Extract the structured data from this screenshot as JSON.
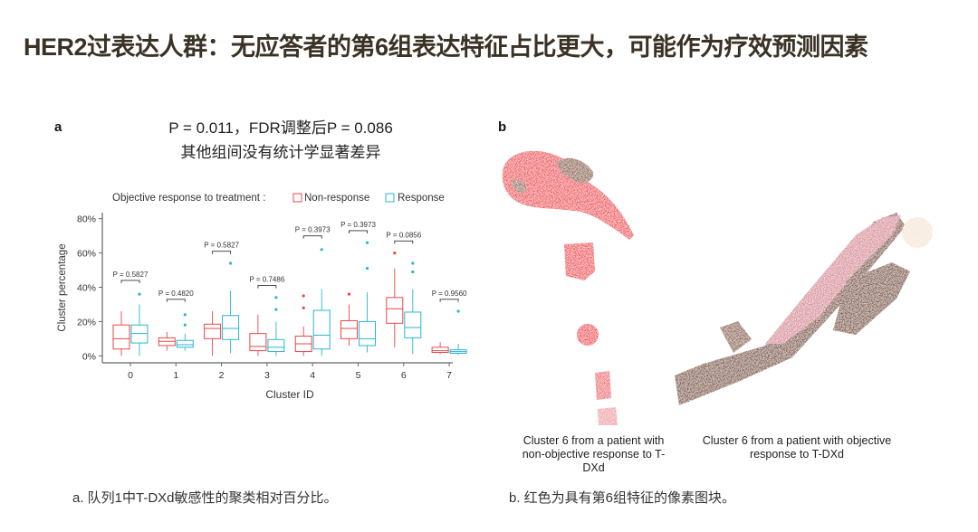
{
  "title": "HER2过表达人群：无应答者的第6组表达特征占比更大，可能作为疗效预测因素",
  "panel_a": {
    "letter": "a",
    "stat_line1": "P = 0.011，FDR调整后P = 0.086",
    "stat_line2": "其他组间没有统计学显著差异",
    "caption": "a. 队列1中T-DXd敏感性的聚类相对百分比。"
  },
  "panel_b": {
    "letter": "b",
    "caption_left": "Cluster 6 from a patient with non-objective response to T-DXd",
    "caption_right": "Cluster 6 from a patient with objective response to T-DXd",
    "caption": "b. 红色为具有第6组特征的像素图块。"
  },
  "chart_data": {
    "type": "box",
    "legend_title": "Objective response to treatment :",
    "legend_position": "top",
    "xlabel": "Cluster ID",
    "ylabel": "Cluster percentage",
    "ylim": [
      0,
      80
    ],
    "yticks": [
      "0%",
      "20%",
      "40%",
      "60%",
      "80%"
    ],
    "ytick_values": [
      0,
      20,
      40,
      60,
      80
    ],
    "categories": [
      "0",
      "1",
      "2",
      "3",
      "4",
      "5",
      "6",
      "7"
    ],
    "series": [
      {
        "name": "Non-response",
        "color": "#e8474a",
        "boxes": [
          {
            "low": 0,
            "q1": 4,
            "median": 10,
            "q3": 18,
            "high": 26,
            "outliers": []
          },
          {
            "low": 3,
            "q1": 6,
            "median": 8.5,
            "q3": 10.5,
            "high": 14,
            "outliers": []
          },
          {
            "low": 0,
            "q1": 10,
            "median": 16,
            "q3": 18.5,
            "high": 26,
            "outliers": []
          },
          {
            "low": 0,
            "q1": 3,
            "median": 5.5,
            "q3": 13,
            "high": 24,
            "outliers": []
          },
          {
            "low": 0,
            "q1": 2.5,
            "median": 7,
            "q3": 11.5,
            "high": 17,
            "outliers": [
              28,
              35
            ]
          },
          {
            "low": 6,
            "q1": 10,
            "median": 16,
            "q3": 20.5,
            "high": 30,
            "outliers": [
              36
            ]
          },
          {
            "low": 5,
            "q1": 19,
            "median": 27.5,
            "q3": 34,
            "high": 51,
            "outliers": [
              60
            ]
          },
          {
            "low": 1,
            "q1": 2,
            "median": 3,
            "q3": 5,
            "high": 8,
            "outliers": []
          }
        ]
      },
      {
        "name": "Response",
        "color": "#2bb5d3",
        "boxes": [
          {
            "low": 0,
            "q1": 7.5,
            "median": 13,
            "q3": 18,
            "high": 30,
            "outliers": [
              36
            ]
          },
          {
            "low": 3,
            "q1": 5,
            "median": 6.5,
            "q3": 9,
            "high": 13,
            "outliers": [
              18,
              24
            ]
          },
          {
            "low": 1.5,
            "q1": 9.5,
            "median": 16,
            "q3": 23.5,
            "high": 38,
            "outliers": [
              54
            ]
          },
          {
            "low": 0,
            "q1": 2.5,
            "median": 5,
            "q3": 9.5,
            "high": 20,
            "outliers": [
              27,
              34
            ]
          },
          {
            "low": 0,
            "q1": 4,
            "median": 12,
            "q3": 26.5,
            "high": 39,
            "outliers": [
              62
            ]
          },
          {
            "low": 2,
            "q1": 6,
            "median": 10,
            "q3": 20,
            "high": 37,
            "outliers": [
              51,
              66
            ]
          },
          {
            "low": 1,
            "q1": 10.5,
            "median": 16.5,
            "q3": 25.5,
            "high": 39,
            "outliers": [
              49,
              54
            ]
          },
          {
            "low": 0.5,
            "q1": 1.5,
            "median": 2.5,
            "q3": 3.5,
            "high": 7,
            "outliers": [
              26
            ]
          }
        ]
      }
    ],
    "pvalues": [
      {
        "label": "P = 0.5827",
        "bracket_y": 44
      },
      {
        "label": "P = 0.4820",
        "bracket_y": 33
      },
      {
        "label": "P = 0.5827",
        "bracket_y": 61
      },
      {
        "label": "P = 0.7486",
        "bracket_y": 41
      },
      {
        "label": "P = 0.3973",
        "bracket_y": 70
      },
      {
        "label": "P = 0.3973",
        "bracket_y": 73
      },
      {
        "label": "P = 0.0856",
        "bracket_y": 67
      },
      {
        "label": "P = 0.9560",
        "bracket_y": 33
      }
    ]
  }
}
